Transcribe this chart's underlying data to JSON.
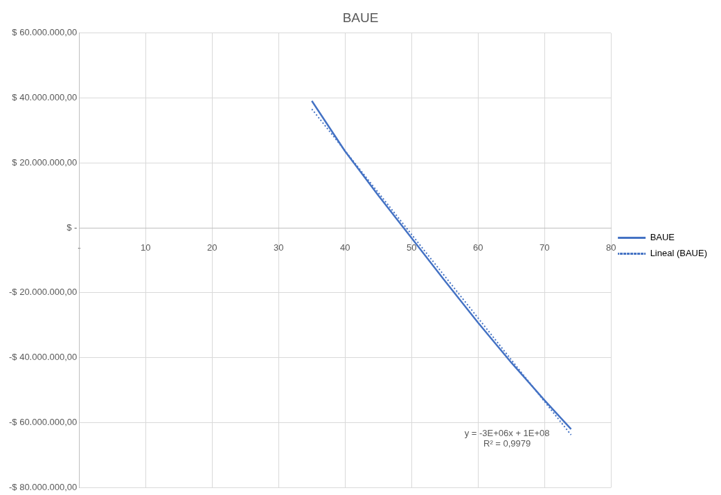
{
  "chart_data": {
    "type": "line",
    "title": "BAUE",
    "xlim": [
      0,
      80
    ],
    "xticks": [
      {
        "value": 0,
        "label": "-"
      },
      10,
      20,
      30,
      40,
      50,
      60,
      70,
      80
    ],
    "ylim": [
      -80000000,
      60000000
    ],
    "yticks": [
      {
        "value": -80000000,
        "label": "-$ 80.000.000,00"
      },
      {
        "value": -60000000,
        "label": "-$ 60.000.000,00"
      },
      {
        "value": -40000000,
        "label": "-$ 40.000.000,00"
      },
      {
        "value": -20000000,
        "label": "-$ 20.000.000,00"
      },
      {
        "value": 0,
        "label": "$ -"
      },
      {
        "value": 20000000,
        "label": "$ 20.000.000,00"
      },
      {
        "value": 40000000,
        "label": "$ 40.000.000,00"
      },
      {
        "value": 60000000,
        "label": "$ 60.000.000,00"
      }
    ],
    "series": [
      {
        "name": "BAUE",
        "color": "#4472c4",
        "x": [
          35,
          40,
          45,
          50,
          55,
          60,
          65,
          70,
          74
        ],
        "values": [
          39100000,
          23600000,
          10000000,
          -3100000,
          -16300000,
          -29200000,
          -41500000,
          -53100000,
          -62000000
        ],
        "line_style": "solid"
      },
      {
        "name": "Lineal (BAUE)",
        "color": "#4472c4",
        "x": [
          35,
          74
        ],
        "values": [
          36600000,
          -63800000
        ],
        "line_style": "dotted"
      }
    ],
    "annotations": [
      "y = -3E+06x + 1E+08",
      "R² = 0,9979"
    ],
    "grid": true,
    "legend": "right",
    "marker": "none"
  }
}
